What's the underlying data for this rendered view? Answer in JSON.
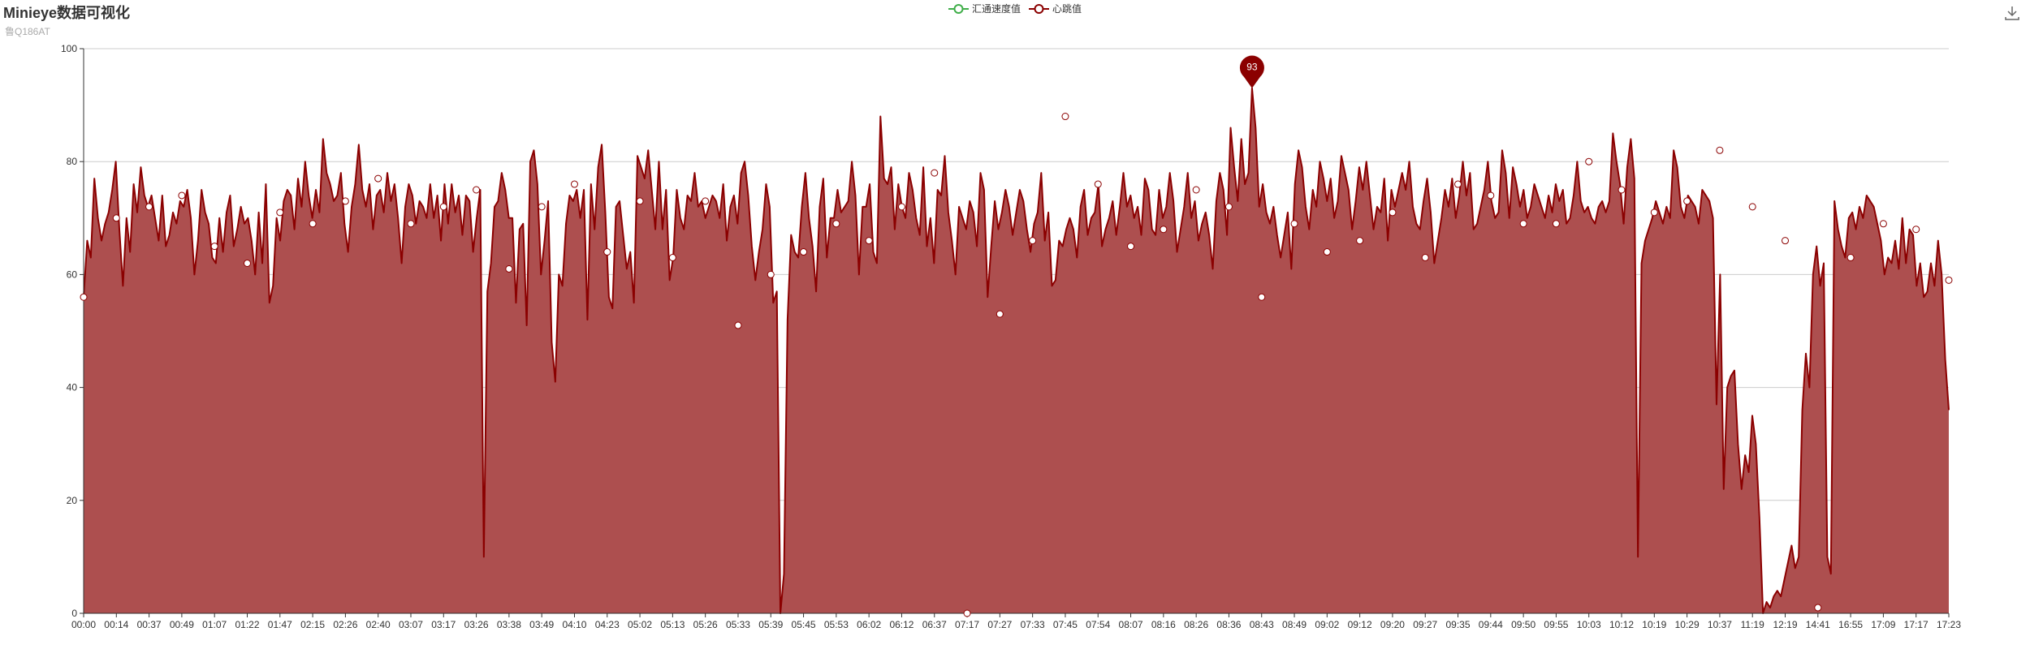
{
  "title": "Minieye数据可视化",
  "subtitle": "鲁Q186AT",
  "toolbox": {
    "icon": "download-icon"
  },
  "colors": {
    "line": "#8b0000",
    "area": "#ad4f4f",
    "speed": "#3fae49",
    "axis": "#333333",
    "grid": "#cccccc"
  },
  "chart_data": {
    "type": "area",
    "legend": [
      "汇通速度值",
      "心跳值"
    ],
    "ylim": [
      0,
      100
    ],
    "y_ticks": [
      0,
      20,
      40,
      60,
      80,
      100
    ],
    "x_ticks": [
      "00:00",
      "00:14",
      "00:37",
      "00:49",
      "01:07",
      "01:22",
      "01:47",
      "02:15",
      "02:26",
      "02:40",
      "03:07",
      "03:17",
      "03:26",
      "03:38",
      "03:49",
      "04:10",
      "04:23",
      "05:02",
      "05:13",
      "05:26",
      "05:33",
      "05:39",
      "05:45",
      "05:53",
      "06:02",
      "06:12",
      "06:37",
      "07:17",
      "07:27",
      "07:33",
      "07:45",
      "07:54",
      "08:07",
      "08:16",
      "08:26",
      "08:36",
      "08:43",
      "08:49",
      "09:02",
      "09:12",
      "09:20",
      "09:27",
      "09:35",
      "09:44",
      "09:50",
      "09:55",
      "10:03",
      "10:12",
      "10:19",
      "10:29",
      "10:37",
      "11:19",
      "12:19",
      "14:41",
      "16:55",
      "17:09",
      "17:17",
      "17:23"
    ],
    "series": [
      {
        "name": "汇通速度值",
        "values": []
      },
      {
        "name": "心跳值",
        "values": [
          56,
          66,
          63,
          77,
          70,
          66,
          69,
          71,
          75,
          80,
          68,
          58,
          70,
          64,
          76,
          71,
          79,
          74,
          72,
          74,
          70,
          66,
          74,
          65,
          67,
          71,
          69,
          73,
          72,
          75,
          70,
          60,
          66,
          75,
          71,
          69,
          63,
          62,
          70,
          64,
          71,
          74,
          65,
          68,
          72,
          69,
          70,
          66,
          60,
          71,
          62,
          76,
          55,
          58,
          70,
          66,
          73,
          75,
          74,
          68,
          77,
          72,
          80,
          74,
          70,
          75,
          71,
          84,
          78,
          76,
          73,
          74,
          78,
          69,
          64,
          72,
          76,
          83,
          75,
          72,
          76,
          68,
          74,
          75,
          71,
          78,
          73,
          76,
          70,
          62,
          72,
          76,
          74,
          69,
          73,
          72,
          70,
          76,
          70,
          74,
          66,
          76,
          69,
          76,
          71,
          74,
          67,
          74,
          73,
          64,
          70,
          75,
          10,
          57,
          62,
          72,
          73,
          78,
          75,
          70,
          70,
          55,
          68,
          69,
          51,
          80,
          82,
          76,
          60,
          66,
          73,
          48,
          41,
          60,
          58,
          69,
          74,
          73,
          75,
          70,
          75,
          52,
          76,
          68,
          79,
          83,
          71,
          56,
          54,
          72,
          73,
          67,
          61,
          64,
          55,
          81,
          79,
          77,
          82,
          75,
          68,
          80,
          68,
          75,
          59,
          63,
          75,
          70,
          68,
          74,
          73,
          78,
          72,
          73,
          70,
          72,
          74,
          73,
          70,
          76,
          66,
          72,
          74,
          69,
          78,
          80,
          74,
          65,
          59,
          64,
          68,
          76,
          72,
          55,
          57,
          0,
          7,
          52,
          67,
          64,
          63,
          72,
          78,
          70,
          65,
          57,
          72,
          77,
          63,
          70,
          70,
          75,
          71,
          72,
          73,
          80,
          74,
          60,
          72,
          72,
          76,
          64,
          62,
          88,
          77,
          76,
          79,
          68,
          76,
          72,
          70,
          78,
          75,
          70,
          67,
          79,
          65,
          70,
          62,
          75,
          74,
          81,
          71,
          66,
          60,
          72,
          70,
          68,
          73,
          71,
          65,
          78,
          75,
          56,
          65,
          73,
          68,
          71,
          75,
          72,
          67,
          71,
          75,
          73,
          68,
          64,
          69,
          71,
          78,
          66,
          71,
          58,
          59,
          66,
          65,
          68,
          70,
          68,
          63,
          72,
          75,
          67,
          70,
          71,
          76,
          65,
          68,
          70,
          73,
          67,
          72,
          78,
          72,
          74,
          70,
          72,
          67,
          77,
          75,
          68,
          67,
          75,
          70,
          72,
          78,
          73,
          64,
          68,
          72,
          78,
          70,
          73,
          66,
          69,
          71,
          67,
          61,
          73,
          78,
          75,
          67,
          86,
          79,
          73,
          84,
          76,
          78,
          93,
          86,
          72,
          76,
          71,
          69,
          72,
          67,
          63,
          67,
          71,
          61,
          76,
          82,
          79,
          72,
          68,
          75,
          72,
          80,
          77,
          73,
          77,
          70,
          73,
          81,
          78,
          75,
          68,
          73,
          79,
          75,
          80,
          74,
          68,
          72,
          71,
          77,
          66,
          75,
          72,
          75,
          78,
          75,
          80,
          72,
          69,
          68,
          73,
          77,
          71,
          62,
          66,
          70,
          75,
          72,
          77,
          70,
          74,
          80,
          74,
          78,
          68,
          69,
          72,
          75,
          80,
          73,
          70,
          71,
          82,
          78,
          70,
          79,
          76,
          72,
          75,
          70,
          72,
          76,
          74,
          72,
          70,
          74,
          71,
          76,
          73,
          75,
          69,
          70,
          74,
          80,
          73,
          71,
          72,
          70,
          69,
          72,
          73,
          71,
          73,
          85,
          80,
          76,
          69,
          79,
          84,
          77,
          10,
          62,
          66,
          68,
          70,
          73,
          71,
          69,
          72,
          70,
          82,
          79,
          72,
          70,
          74,
          73,
          72,
          69,
          75,
          74,
          73,
          70,
          37,
          60,
          22,
          40,
          42,
          43,
          30,
          22,
          28,
          25,
          35,
          30,
          17,
          0,
          2,
          1,
          3,
          4,
          3,
          6,
          9,
          12,
          8,
          10,
          36,
          46,
          40,
          60,
          65,
          58,
          62,
          10,
          7,
          73,
          68,
          65,
          63,
          70,
          71,
          68,
          72,
          70,
          74,
          73,
          72,
          69,
          66,
          60,
          63,
          62,
          66,
          61,
          70,
          62,
          68,
          67,
          58,
          62,
          56,
          57,
          62,
          58,
          66,
          60,
          45,
          36
        ]
      }
    ],
    "markers": [
      56,
      70,
      72,
      74,
      65,
      62,
      71,
      69,
      73,
      77,
      69,
      72,
      75,
      61,
      72,
      76,
      64,
      73,
      63,
      73,
      51,
      60,
      64,
      69,
      66,
      72,
      78,
      0,
      53,
      66,
      88,
      76,
      65,
      68,
      75,
      72,
      56,
      69,
      64,
      66,
      71,
      63,
      76,
      74,
      69,
      69,
      80,
      75,
      71,
      73,
      82,
      72,
      66,
      1,
      63,
      69,
      68,
      59
    ],
    "max_label": "93"
  }
}
